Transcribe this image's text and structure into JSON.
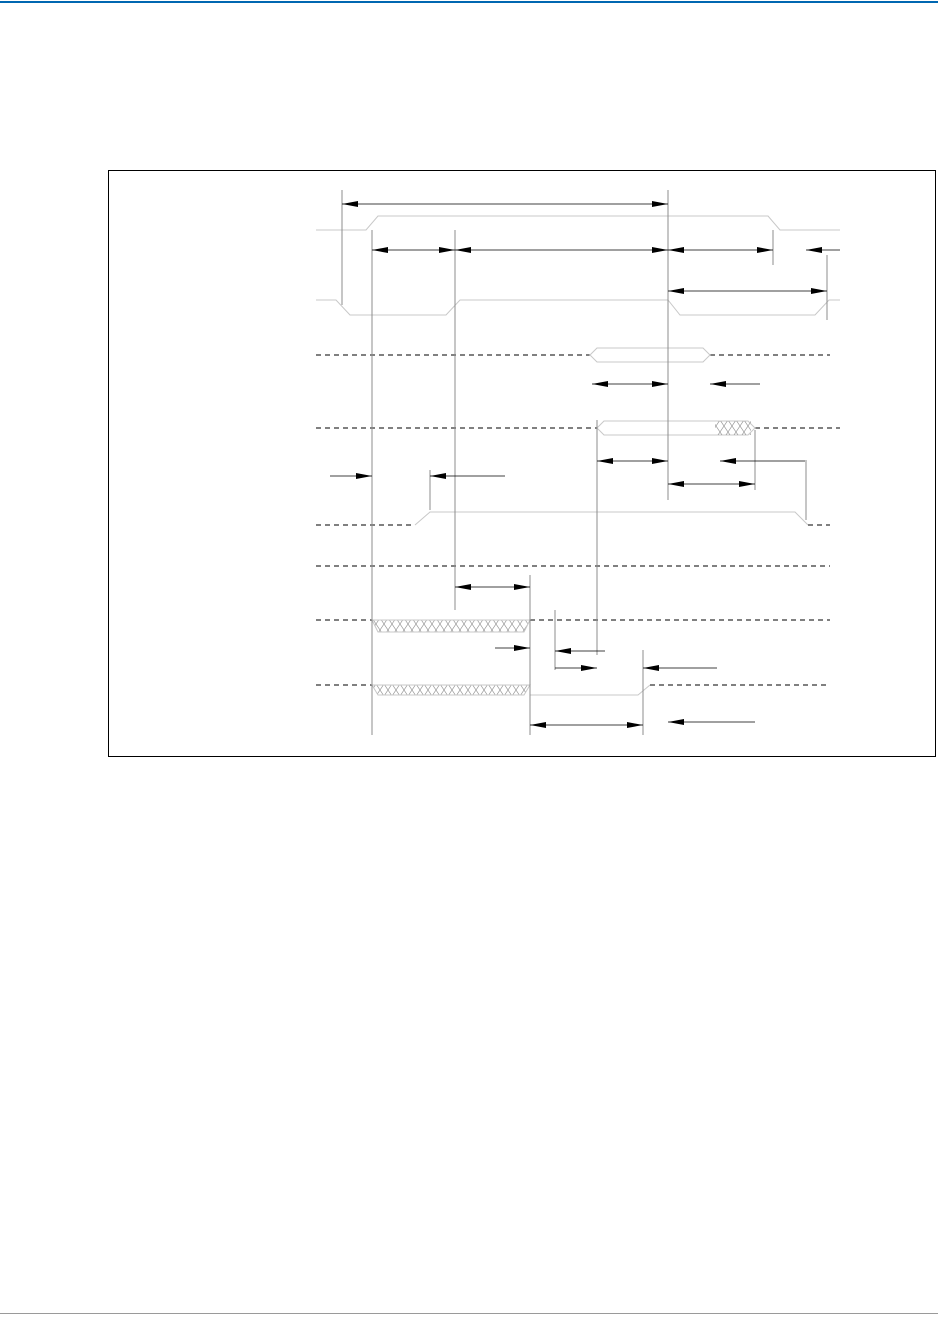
{
  "colors": {
    "header_rule": "#0067b1",
    "footer_rule": "#9a9a9a",
    "frame": "#000000",
    "waveform": "#c8c8c8",
    "guide": "#8c8c8c",
    "arrow": "#000000"
  },
  "diagram": {
    "type": "timing-diagram",
    "signal_count": 8
  }
}
